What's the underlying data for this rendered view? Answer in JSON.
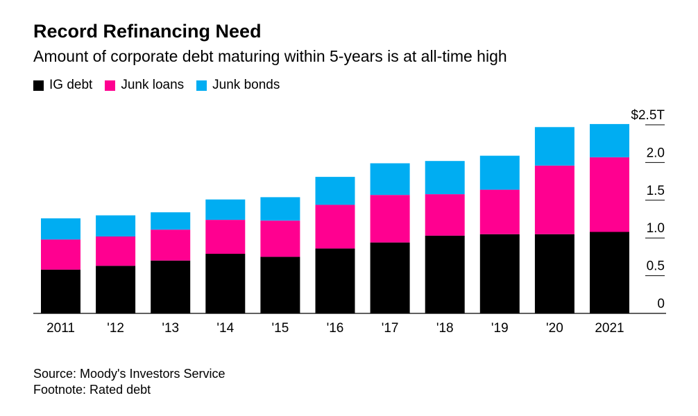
{
  "header": {
    "title": "Record Refinancing Need",
    "subtitle": "Amount of corporate debt maturing within 5-years is at all-time high"
  },
  "legend": [
    {
      "label": "IG debt",
      "color": "#000000"
    },
    {
      "label": "Junk loans",
      "color": "#ff0090"
    },
    {
      "label": "Junk bonds",
      "color": "#00adf2"
    }
  ],
  "footer": {
    "source": "Source: Moody's Investors Service",
    "footnote": "Footnote: Rated debt"
  },
  "chart_data": {
    "type": "bar",
    "stacked": true,
    "categories": [
      "2011",
      "'12",
      "'13",
      "'14",
      "'15",
      "'16",
      "'17",
      "'18",
      "'19",
      "'20",
      "2021"
    ],
    "series": [
      {
        "name": "IG debt",
        "color": "#000000",
        "values": [
          0.58,
          0.63,
          0.7,
          0.79,
          0.75,
          0.86,
          0.94,
          1.03,
          1.05,
          1.05,
          1.08
        ]
      },
      {
        "name": "Junk loans",
        "color": "#ff0090",
        "values": [
          0.4,
          0.39,
          0.41,
          0.45,
          0.48,
          0.58,
          0.63,
          0.55,
          0.59,
          0.91,
          0.99
        ]
      },
      {
        "name": "Junk bonds",
        "color": "#00adf2",
        "values": [
          0.28,
          0.28,
          0.23,
          0.27,
          0.31,
          0.37,
          0.42,
          0.44,
          0.45,
          0.51,
          0.44
        ]
      }
    ],
    "y_ticks": [
      {
        "value": 0,
        "label": "0"
      },
      {
        "value": 0.5,
        "label": "0.5"
      },
      {
        "value": 1.0,
        "label": "1.0"
      },
      {
        "value": 1.5,
        "label": "1.5"
      },
      {
        "value": 2.0,
        "label": "2.0"
      },
      {
        "value": 2.5,
        "label": "$2.5T"
      }
    ],
    "ylim": [
      0,
      2.5
    ],
    "y_axis_position": "right",
    "grid": false,
    "legend_position": "top-left"
  }
}
